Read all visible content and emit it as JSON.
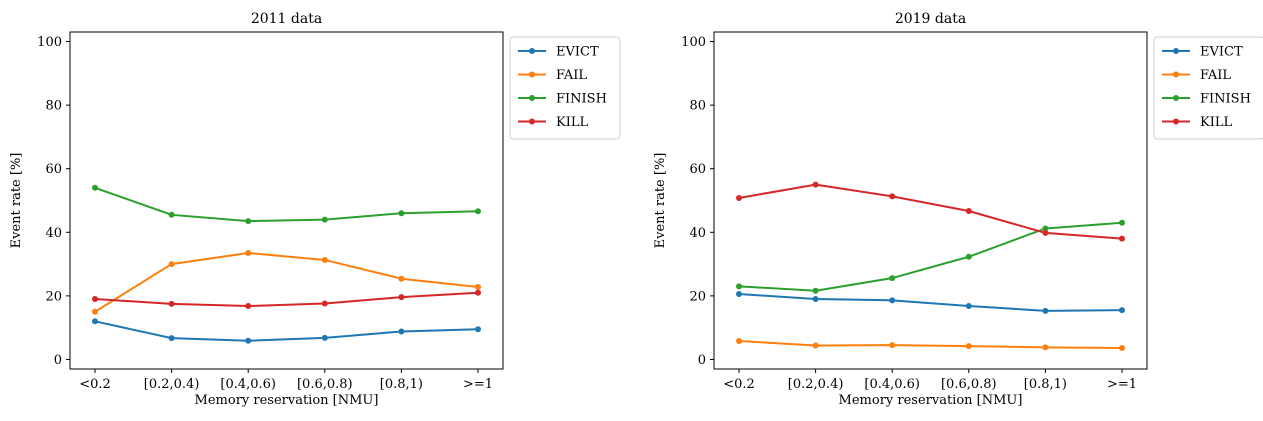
{
  "chart_data": [
    {
      "type": "line",
      "title": "2011 data",
      "xlabel": "Memory reservation [NMU]",
      "ylabel": "Event rate [%]",
      "categories": [
        "<0.2",
        "[0.2,0.4)",
        "[0.4,0.6)",
        "[0.6,0.8)",
        "[0.8,1)",
        ">=1"
      ],
      "ylim": [
        -3,
        103
      ],
      "yticks": [
        0,
        20,
        40,
        60,
        80,
        100
      ],
      "grid": false,
      "legend": "upper-right-outside",
      "series": [
        {
          "name": "EVICT",
          "color": "#1f77b4",
          "values": [
            12.0,
            6.7,
            5.9,
            6.8,
            8.8,
            9.5
          ]
        },
        {
          "name": "FAIL",
          "color": "#ff7f0e",
          "values": [
            15.0,
            30.0,
            33.5,
            31.3,
            25.4,
            22.8
          ]
        },
        {
          "name": "FINISH",
          "color": "#2ca02c",
          "values": [
            54.0,
            45.5,
            43.5,
            44.0,
            46.0,
            46.6
          ]
        },
        {
          "name": "KILL",
          "color": "#d62728",
          "values": [
            19.0,
            17.5,
            16.8,
            17.6,
            19.6,
            21.0
          ]
        }
      ]
    },
    {
      "type": "line",
      "title": "2019 data",
      "xlabel": "Memory reservation [NMU]",
      "ylabel": "Event rate [%]",
      "categories": [
        "<0.2",
        "[0.2,0.4)",
        "[0.4,0.6)",
        "[0.6,0.8)",
        "[0.8,1)",
        ">=1"
      ],
      "ylim": [
        -3,
        103
      ],
      "yticks": [
        0,
        20,
        40,
        60,
        80,
        100
      ],
      "grid": false,
      "legend": "upper-right-outside",
      "series": [
        {
          "name": "EVICT",
          "color": "#1f77b4",
          "values": [
            20.6,
            19.0,
            18.6,
            16.8,
            15.3,
            15.5
          ]
        },
        {
          "name": "FAIL",
          "color": "#ff7f0e",
          "values": [
            5.8,
            4.4,
            4.5,
            4.2,
            3.8,
            3.6
          ]
        },
        {
          "name": "FINISH",
          "color": "#2ca02c",
          "values": [
            23.0,
            21.6,
            25.6,
            32.3,
            41.2,
            43.0
          ]
        },
        {
          "name": "KILL",
          "color": "#d62728",
          "values": [
            50.8,
            55.0,
            51.3,
            46.7,
            39.8,
            38.0
          ]
        }
      ]
    }
  ]
}
